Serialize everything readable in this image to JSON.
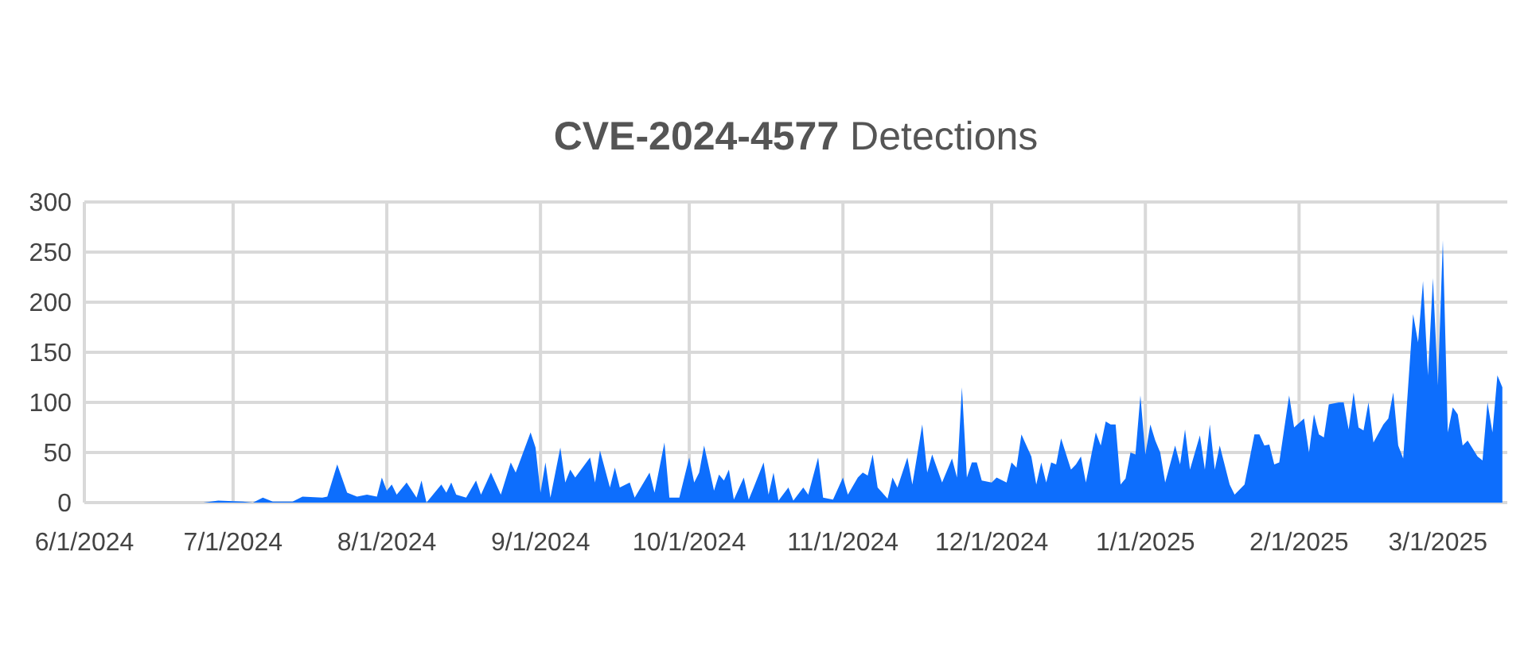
{
  "chart_data": {
    "type": "area",
    "title": "CVE-2024-4577 Detections",
    "x": [
      "2024-06-25",
      "2024-06-28",
      "2024-07-03",
      "2024-07-05",
      "2024-07-07",
      "2024-07-09",
      "2024-07-13",
      "2024-07-15",
      "2024-07-19",
      "2024-07-20",
      "2024-07-22",
      "2024-07-24",
      "2024-07-26",
      "2024-07-28",
      "2024-07-30",
      "2024-07-31",
      "2024-08-01",
      "2024-08-02",
      "2024-08-03",
      "2024-08-05",
      "2024-08-07",
      "2024-08-08",
      "2024-08-09",
      "2024-08-12",
      "2024-08-13",
      "2024-08-14",
      "2024-08-15",
      "2024-08-17",
      "2024-08-19",
      "2024-08-20",
      "2024-08-22",
      "2024-08-24",
      "2024-08-26",
      "2024-08-27",
      "2024-08-30",
      "2024-08-31",
      "2024-09-01",
      "2024-09-02",
      "2024-09-03",
      "2024-09-05",
      "2024-09-06",
      "2024-09-07",
      "2024-09-08",
      "2024-09-11",
      "2024-09-12",
      "2024-09-13",
      "2024-09-15",
      "2024-09-16",
      "2024-09-17",
      "2024-09-19",
      "2024-09-20",
      "2024-09-23",
      "2024-09-24",
      "2024-09-26",
      "2024-09-27",
      "2024-09-29",
      "2024-10-01",
      "2024-10-02",
      "2024-10-03",
      "2024-10-04",
      "2024-10-06",
      "2024-10-07",
      "2024-10-08",
      "2024-10-09",
      "2024-10-10",
      "2024-10-12",
      "2024-10-13",
      "2024-10-14",
      "2024-10-16",
      "2024-10-17",
      "2024-10-18",
      "2024-10-19",
      "2024-10-21",
      "2024-10-22",
      "2024-10-24",
      "2024-10-25",
      "2024-10-27",
      "2024-10-28",
      "2024-10-30",
      "2024-11-01",
      "2024-11-02",
      "2024-11-04",
      "2024-11-05",
      "2024-11-06",
      "2024-11-07",
      "2024-11-08",
      "2024-11-10",
      "2024-11-11",
      "2024-11-12",
      "2024-11-14",
      "2024-11-15",
      "2024-11-17",
      "2024-11-18",
      "2024-11-19",
      "2024-11-21",
      "2024-11-23",
      "2024-11-24",
      "2024-11-25",
      "2024-11-26",
      "2024-11-27",
      "2024-11-28",
      "2024-11-29",
      "2024-12-01",
      "2024-12-02",
      "2024-12-04",
      "2024-12-05",
      "2024-12-06",
      "2024-12-07",
      "2024-12-09",
      "2024-12-10",
      "2024-12-11",
      "2024-12-12",
      "2024-12-13",
      "2024-12-14",
      "2024-12-15",
      "2024-12-17",
      "2024-12-18",
      "2024-12-19",
      "2024-12-20",
      "2024-12-22",
      "2024-12-23",
      "2024-12-24",
      "2024-12-25",
      "2024-12-26",
      "2024-12-27",
      "2024-12-28",
      "2024-12-29",
      "2024-12-30",
      "2024-12-31",
      "2025-01-01",
      "2025-01-02",
      "2025-01-03",
      "2025-01-04",
      "2025-01-05",
      "2025-01-07",
      "2025-01-08",
      "2025-01-09",
      "2025-01-10",
      "2025-01-12",
      "2025-01-13",
      "2025-01-14",
      "2025-01-15",
      "2025-01-16",
      "2025-01-18",
      "2025-01-19",
      "2025-01-21",
      "2025-01-23",
      "2025-01-24",
      "2025-01-25",
      "2025-01-26",
      "2025-01-27",
      "2025-01-28",
      "2025-01-30",
      "2025-01-31",
      "2025-02-02",
      "2025-02-03",
      "2025-02-04",
      "2025-02-05",
      "2025-02-06",
      "2025-02-07",
      "2025-02-09",
      "2025-02-10",
      "2025-02-11",
      "2025-02-12",
      "2025-02-13",
      "2025-02-14",
      "2025-02-15",
      "2025-02-16",
      "2025-02-18",
      "2025-02-19",
      "2025-02-20",
      "2025-02-21",
      "2025-02-22",
      "2025-02-24",
      "2025-02-25",
      "2025-02-26",
      "2025-02-27",
      "2025-02-28",
      "2025-03-01",
      "2025-03-02",
      "2025-03-03",
      "2025-03-04",
      "2025-03-05",
      "2025-03-06",
      "2025-03-07",
      "2025-03-09",
      "2025-03-10",
      "2025-03-11",
      "2025-03-12",
      "2025-03-13",
      "2025-03-14"
    ],
    "series": [
      {
        "color": "#0d6efd",
        "values": [
          0,
          2,
          1,
          0,
          5,
          1,
          1,
          6,
          5,
          6,
          38,
          10,
          6,
          8,
          6,
          25,
          12,
          18,
          8,
          20,
          5,
          22,
          0,
          18,
          10,
          20,
          8,
          5,
          22,
          8,
          30,
          8,
          40,
          30,
          70,
          55,
          10,
          40,
          5,
          55,
          20,
          33,
          25,
          45,
          20,
          52,
          15,
          35,
          15,
          20,
          5,
          30,
          10,
          60,
          5,
          5,
          45,
          20,
          30,
          57,
          12,
          28,
          22,
          33,
          3,
          25,
          3,
          15,
          40,
          8,
          30,
          2,
          15,
          2,
          15,
          8,
          45,
          5,
          3,
          25,
          8,
          25,
          30,
          27,
          48,
          15,
          4,
          25,
          15,
          45,
          18,
          78,
          30,
          48,
          20,
          44,
          25,
          115,
          25,
          40,
          40,
          22,
          20,
          25,
          20,
          40,
          35,
          68,
          46,
          18,
          40,
          20,
          40,
          38,
          64,
          33,
          38,
          46,
          20,
          70,
          57,
          81,
          78,
          78,
          18,
          24,
          50,
          48,
          107,
          48,
          78,
          62,
          50,
          20,
          57,
          38,
          73,
          33,
          67,
          33,
          78,
          33,
          57,
          18,
          8,
          18,
          68,
          68,
          57,
          58,
          38,
          40,
          107,
          75,
          84,
          50,
          88,
          68,
          65,
          98,
          100,
          100,
          73,
          110,
          75,
          72,
          100,
          60,
          78,
          84,
          110,
          57,
          44,
          188,
          160,
          221,
          127,
          224,
          117,
          262,
          70,
          95,
          88,
          57,
          62,
          46,
          42,
          100,
          70,
          127,
          115
        ]
      }
    ],
    "xlim": [
      "2024-06-01",
      "2025-03-15"
    ],
    "xticks": [
      {
        "value": "2024-06-01",
        "label": "6/1/2024"
      },
      {
        "value": "2024-07-01",
        "label": "7/1/2024"
      },
      {
        "value": "2024-08-01",
        "label": "8/1/2024"
      },
      {
        "value": "2024-09-01",
        "label": "9/1/2024"
      },
      {
        "value": "2024-10-01",
        "label": "10/1/2024"
      },
      {
        "value": "2024-11-01",
        "label": "11/1/2024"
      },
      {
        "value": "2024-12-01",
        "label": "12/1/2024"
      },
      {
        "value": "2025-01-01",
        "label": "1/1/2025"
      },
      {
        "value": "2025-02-01",
        "label": "2/1/2025"
      },
      {
        "value": "2025-03-01",
        "label": "3/1/2025"
      }
    ],
    "ylim": [
      0,
      300
    ],
    "yticks": [
      0,
      50,
      100,
      150,
      200,
      250,
      300
    ],
    "grid": true
  }
}
